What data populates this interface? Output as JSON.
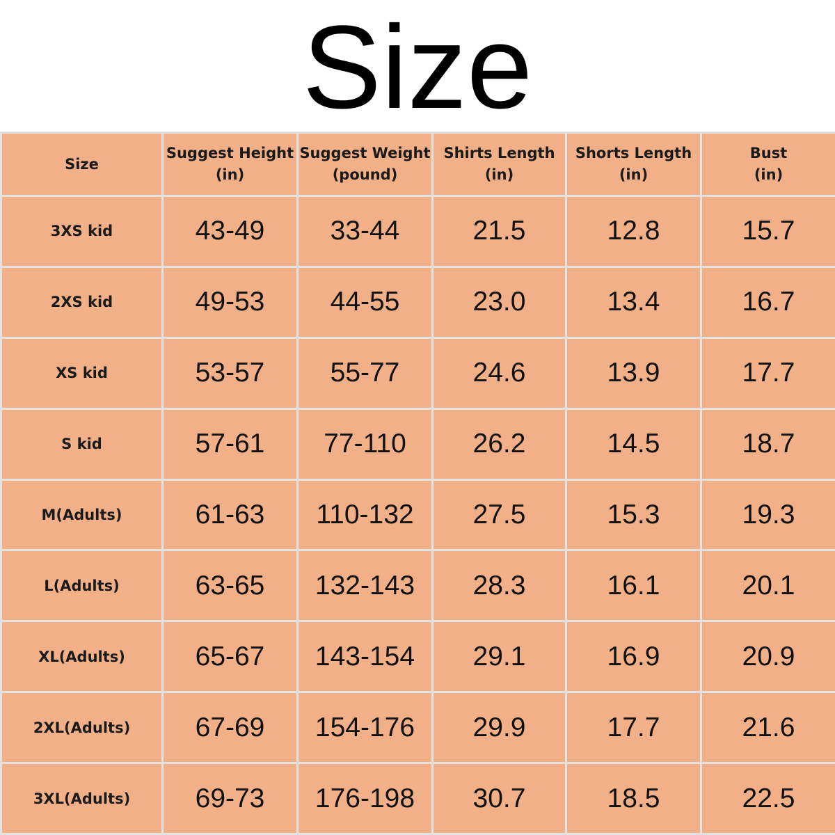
{
  "title": "Size",
  "colors": {
    "cell_background": "#f2b088",
    "grid_lines": "#e2e2e2",
    "text": "#111111"
  },
  "table": {
    "headers": [
      {
        "line1": "Size",
        "line2": ""
      },
      {
        "line1": "Suggest Height",
        "line2": "(in)"
      },
      {
        "line1": "Suggest Weight",
        "line2": "(pound)"
      },
      {
        "line1": "Shirts Length",
        "line2": "(in)"
      },
      {
        "line1": "Shorts Length",
        "line2": "(in)"
      },
      {
        "line1": "Bust",
        "line2": "(in)"
      }
    ],
    "rows": [
      [
        "3XS kid",
        "43-49",
        "33-44",
        "21.5",
        "12.8",
        "15.7"
      ],
      [
        "2XS kid",
        "49-53",
        "44-55",
        "23.0",
        "13.4",
        "16.7"
      ],
      [
        "XS kid",
        "53-57",
        "55-77",
        "24.6",
        "13.9",
        "17.7"
      ],
      [
        "S kid",
        "57-61",
        "77-110",
        "26.2",
        "14.5",
        "18.7"
      ],
      [
        "M(Adults)",
        "61-63",
        "110-132",
        "27.5",
        "15.3",
        "19.3"
      ],
      [
        "L(Adults)",
        "63-65",
        "132-143",
        "28.3",
        "16.1",
        "20.1"
      ],
      [
        "XL(Adults)",
        "65-67",
        "143-154",
        "29.1",
        "16.9",
        "20.9"
      ],
      [
        "2XL(Adults)",
        "67-69",
        "154-176",
        "29.9",
        "17.7",
        "21.6"
      ],
      [
        "3XL(Adults)",
        "69-73",
        "176-198",
        "30.7",
        "18.5",
        "22.5"
      ]
    ]
  }
}
